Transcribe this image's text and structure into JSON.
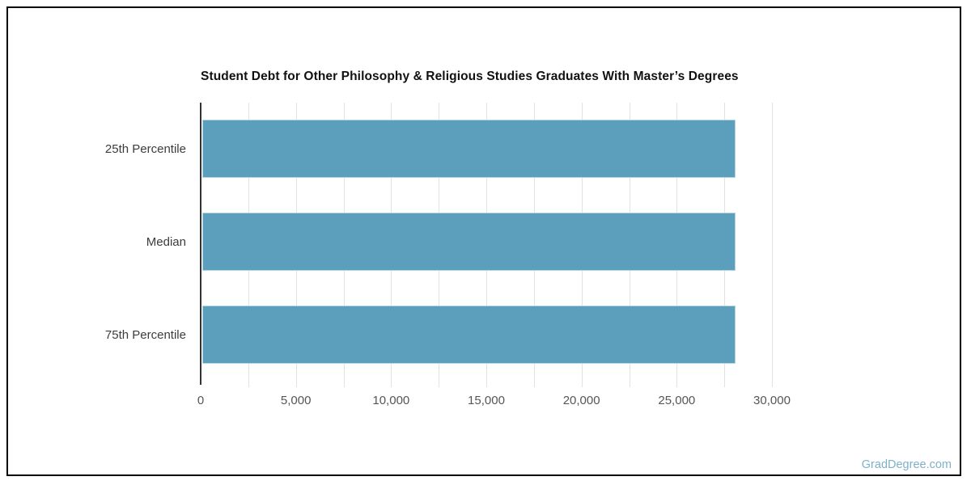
{
  "page": {
    "watermark": "GradDegree.com",
    "background": "#ffffff",
    "border_color": "#000000"
  },
  "chart_data": {
    "type": "bar",
    "orientation": "horizontal",
    "title": "Student Debt for Other Philosophy & Religious Studies Graduates With Master’s Degrees",
    "categories": [
      "25th Percentile",
      "Median",
      "75th Percentile"
    ],
    "values": [
      28000,
      28000,
      28000
    ],
    "xlabel": "",
    "ylabel": "",
    "xlim": [
      0,
      30000
    ],
    "x_tick_step": 5000,
    "x_tick_labels": [
      "0",
      "5,000",
      "10,000",
      "15,000",
      "20,000",
      "25,000",
      "30,000"
    ],
    "gridline_step": 2500,
    "grid": true,
    "legend": false,
    "bar_color": "#5b9fbc",
    "bar_border_color": "#b3d4e2",
    "gridline_color": "#e2e2e2",
    "axis_color": "#333333",
    "title_color": "#111111",
    "category_label_color": "#3c3c3c",
    "tick_label_color": "#555555",
    "watermark_color": "#7fb0ca"
  }
}
